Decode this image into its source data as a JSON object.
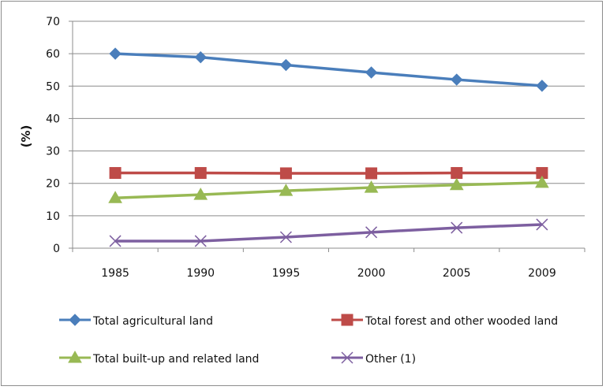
{
  "chart_data": {
    "type": "line",
    "title": "",
    "xlabel": "",
    "ylabel": "(%)",
    "ylim": [
      0,
      70
    ],
    "yticks": [
      0,
      10,
      20,
      30,
      40,
      50,
      60,
      70
    ],
    "grid": true,
    "legend_position": "bottom",
    "categories": [
      "1985",
      "1990",
      "1995",
      "2000",
      "2005",
      "2009"
    ],
    "series": [
      {
        "name": "Total agricultural land",
        "color": "#4a7ebb",
        "marker": "diamond",
        "values": [
          60.0,
          58.9,
          56.5,
          54.2,
          52.0,
          50.1
        ]
      },
      {
        "name": "Total forest and other wooded land",
        "color": "#be4b48",
        "marker": "square",
        "values": [
          23.2,
          23.2,
          23.1,
          23.1,
          23.2,
          23.2
        ]
      },
      {
        "name": "Total built-up and related land",
        "color": "#98b954",
        "marker": "triangle",
        "values": [
          15.5,
          16.5,
          17.7,
          18.7,
          19.5,
          20.2
        ]
      },
      {
        "name": "Other (1)",
        "color": "#7d5fa0",
        "marker": "x",
        "values": [
          2.2,
          2.2,
          3.4,
          4.9,
          6.3,
          7.3
        ]
      }
    ]
  }
}
